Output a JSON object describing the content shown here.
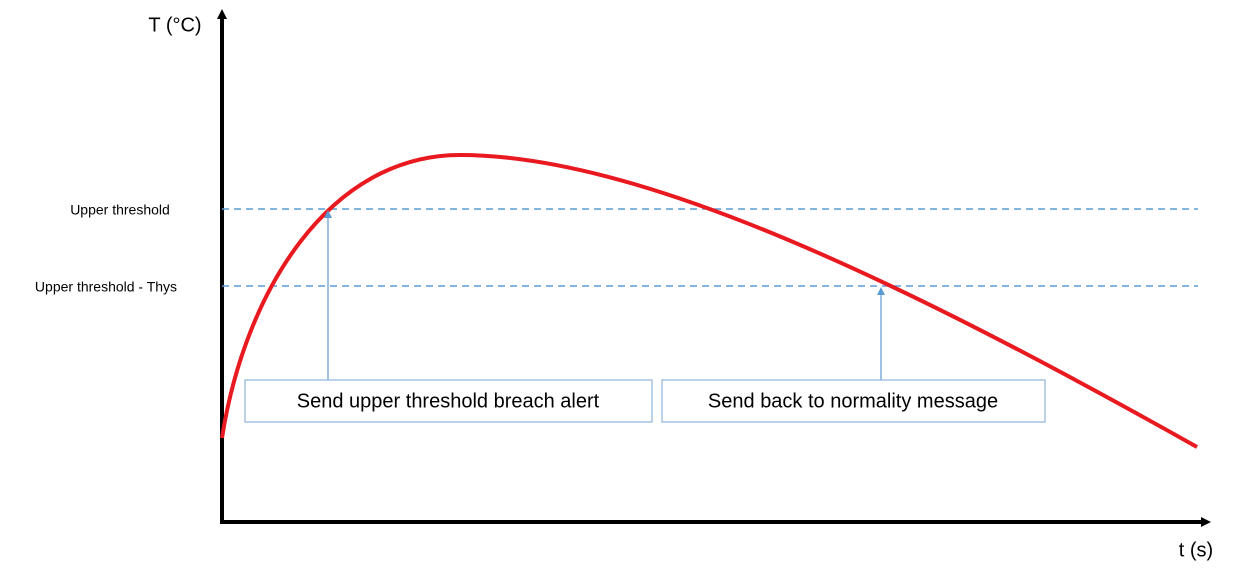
{
  "y_axis_label": "T (°C)",
  "x_axis_label": "t (s)",
  "thresholds": [
    "Upper threshold",
    "Upper threshold - Thys"
  ],
  "messages": [
    "Send upper threshold breach alert",
    "Send back to normality message"
  ]
}
